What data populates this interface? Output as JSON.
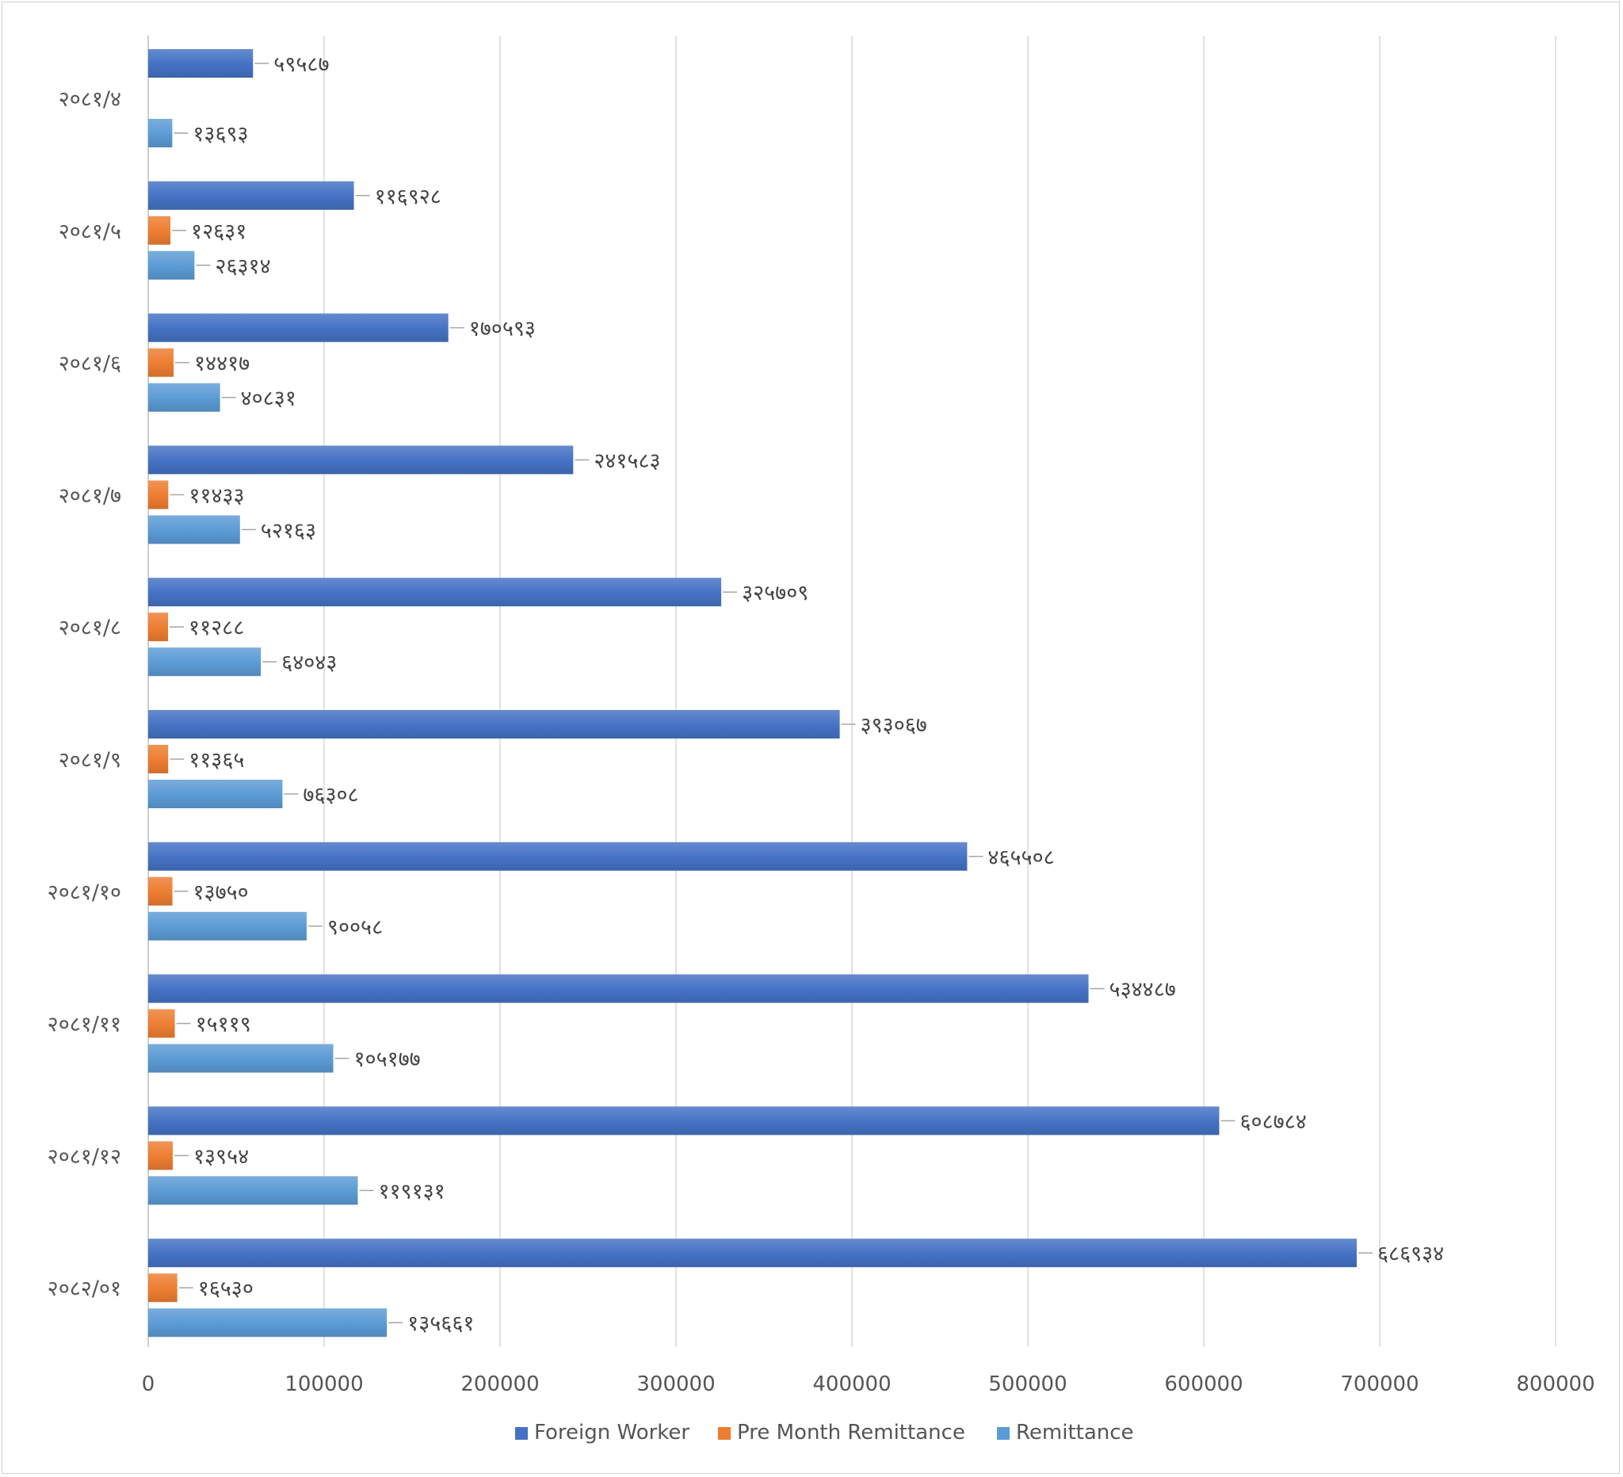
{
  "chart_data": {
    "type": "bar",
    "orientation": "horizontal",
    "categories": [
      "२०८१/४",
      "२०८१/५",
      "२०८१/६",
      "२०८१/७",
      "२०८१/८",
      "२०८१/९",
      "२०८१/१०",
      "२०८१/११",
      "२०८१/१२",
      "२०८२/०१"
    ],
    "series": [
      {
        "name": "Foreign Worker",
        "color": "#4472c4",
        "values": [
          59587,
          116928,
          170593,
          241583,
          325709,
          393067,
          465508,
          534487,
          608784,
          686934
        ],
        "labels": [
          "५९५८७",
          "११६९२८",
          "१७०५९३",
          "२४१५८३",
          "३२५७०९",
          "३९३०६७",
          "४६५५०८",
          "५३४४८७",
          "६०८७८४",
          "६८६९३४"
        ]
      },
      {
        "name": "Pre Month Remittance",
        "color": "#ed7d31",
        "values": [
          null,
          12631,
          14417,
          11433,
          11288,
          11365,
          13750,
          15119,
          13954,
          16530
        ],
        "labels": [
          "",
          "१२६३१",
          "१४४१७",
          "११४३३",
          "११२८८",
          "११३६५",
          "१३७५०",
          "१५११९",
          "१३९५४",
          "१६५३०"
        ]
      },
      {
        "name": "Remittance",
        "color": "#5b9bd5",
        "values": [
          13693,
          26314,
          40831,
          52163,
          64043,
          76308,
          90058,
          105177,
          119131,
          135661
        ],
        "labels": [
          "१३६९३",
          "२६३१४",
          "४०८३१",
          "५२१६३",
          "६४०४३",
          "७६३०८",
          "९००५८",
          "१०५१७७",
          "११९१३१",
          "१३५६६१"
        ]
      }
    ],
    "xlim": [
      0,
      800000
    ],
    "xticks": [
      0,
      100000,
      200000,
      300000,
      400000,
      500000,
      600000,
      700000,
      800000
    ],
    "xtick_labels": [
      "0",
      "100000",
      "200000",
      "300000",
      "400000",
      "500000",
      "600000",
      "700000",
      "800000"
    ],
    "grid": true,
    "legend": "bottom",
    "title": "",
    "xlabel": "",
    "ylabel": ""
  }
}
